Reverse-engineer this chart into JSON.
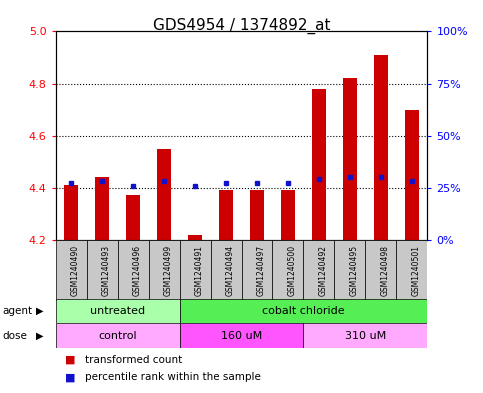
{
  "title": "GDS4954 / 1374892_at",
  "samples": [
    "GSM1240490",
    "GSM1240493",
    "GSM1240496",
    "GSM1240499",
    "GSM1240491",
    "GSM1240494",
    "GSM1240497",
    "GSM1240500",
    "GSM1240492",
    "GSM1240495",
    "GSM1240498",
    "GSM1240501"
  ],
  "transformed_count": [
    4.41,
    4.44,
    4.37,
    4.55,
    4.22,
    4.39,
    4.39,
    4.39,
    4.78,
    4.82,
    4.91,
    4.7
  ],
  "percentile_rank": [
    27,
    28,
    26,
    28,
    26,
    27,
    27,
    27,
    29,
    30,
    30,
    28
  ],
  "ylim_left": [
    4.2,
    5.0
  ],
  "ylim_right": [
    0,
    100
  ],
  "yticks_left": [
    4.2,
    4.4,
    4.6,
    4.8,
    5.0
  ],
  "yticks_right": [
    0,
    25,
    50,
    75,
    100
  ],
  "ytick_labels_right": [
    "0%",
    "25%",
    "50%",
    "75%",
    "100%"
  ],
  "bar_color": "#cc0000",
  "dot_color": "#1111cc",
  "baseline": 4.2,
  "agent_groups": [
    {
      "label": "untreated",
      "start": 0,
      "end": 4,
      "color": "#aaffaa"
    },
    {
      "label": "cobalt chloride",
      "start": 4,
      "end": 12,
      "color": "#55ee55"
    }
  ],
  "dose_groups": [
    {
      "label": "control",
      "start": 0,
      "end": 4,
      "color": "#ffaaff"
    },
    {
      "label": "160 uM",
      "start": 4,
      "end": 8,
      "color": "#ff55ff"
    },
    {
      "label": "310 uM",
      "start": 8,
      "end": 12,
      "color": "#ffaaff"
    }
  ],
  "sample_box_color": "#c8c8c8",
  "plot_bg": "white",
  "title_fontsize": 11,
  "bar_width": 0.45
}
